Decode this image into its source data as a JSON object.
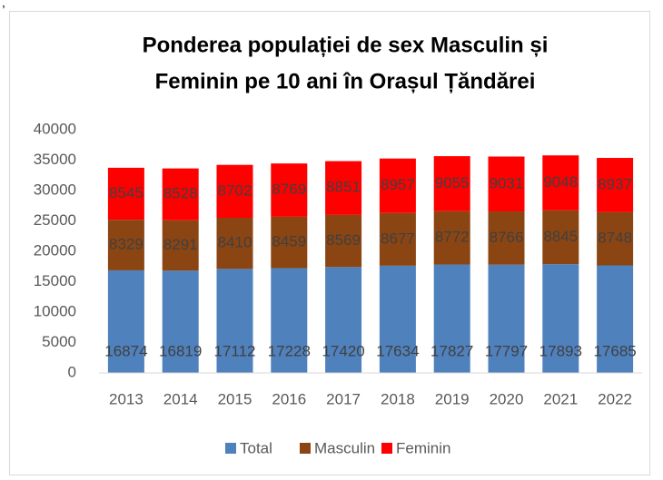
{
  "stray_text": ",",
  "chart_data": {
    "type": "stacked_bar",
    "title": [
      "Ponderea populației de sex Masculin și",
      "Feminin pe 10 ani în Orașul Țăndărei"
    ],
    "categories": [
      "2013",
      "2014",
      "2015",
      "2016",
      "2017",
      "2018",
      "2019",
      "2020",
      "2021",
      "2022"
    ],
    "series": [
      {
        "name": "Total",
        "color": "#4f81bd",
        "values": [
          16874,
          16819,
          17112,
          17228,
          17420,
          17634,
          17827,
          17797,
          17893,
          17685
        ]
      },
      {
        "name": "Masculin",
        "color": "#8b4513",
        "values": [
          8329,
          8291,
          8410,
          8459,
          8569,
          8677,
          8772,
          8766,
          8845,
          8748
        ]
      },
      {
        "name": "Feminin",
        "color": "#ff0000",
        "values": [
          8545,
          8528,
          8702,
          8769,
          8851,
          8957,
          9055,
          9031,
          9048,
          8937
        ]
      }
    ],
    "ylim": [
      0,
      40000
    ],
    "yticks": [
      0,
      5000,
      10000,
      15000,
      20000,
      25000,
      30000,
      35000,
      40000
    ],
    "grid": false,
    "legend": "bottom"
  }
}
